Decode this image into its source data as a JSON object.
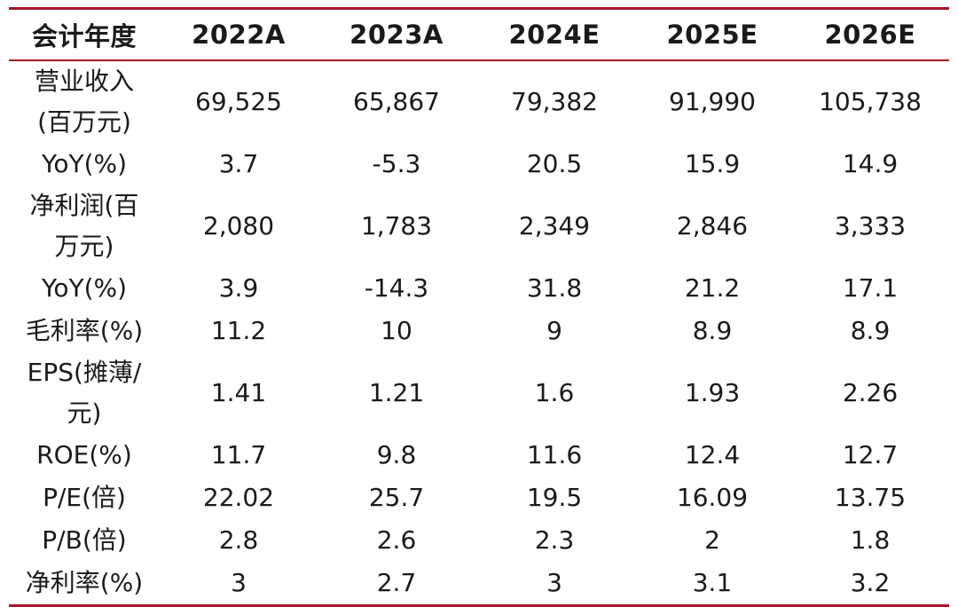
{
  "table": {
    "header": [
      "会计年度",
      "2022A",
      "2023A",
      "2024E",
      "2025E",
      "2026E"
    ],
    "rows": [
      {
        "label": "营业收入(百万元)",
        "lines": 2,
        "values": [
          "69,525",
          "65,867",
          "79,382",
          "91,990",
          "105,738"
        ]
      },
      {
        "label": "YoY(%)",
        "lines": 1,
        "values": [
          "3.7",
          "-5.3",
          "20.5",
          "15.9",
          "14.9"
        ]
      },
      {
        "label": "净利润(百万元)",
        "lines": 2,
        "values": [
          "2,080",
          "1,783",
          "2,349",
          "2,846",
          "3,333"
        ]
      },
      {
        "label": "YoY(%)",
        "lines": 1,
        "values": [
          "3.9",
          "-14.3",
          "31.8",
          "21.2",
          "17.1"
        ]
      },
      {
        "label": "毛利率(%)",
        "lines": 1,
        "values": [
          "11.2",
          "10",
          "9",
          "8.9",
          "8.9"
        ]
      },
      {
        "label": "EPS(摊薄/元)",
        "lines": 2,
        "values": [
          "1.41",
          "1.21",
          "1.6",
          "1.93",
          "2.26"
        ]
      },
      {
        "label": "ROE(%)",
        "lines": 1,
        "values": [
          "11.7",
          "9.8",
          "11.6",
          "12.4",
          "12.7"
        ]
      },
      {
        "label": "P/E(倍)",
        "lines": 1,
        "values": [
          "22.02",
          "25.7",
          "19.5",
          "16.09",
          "13.75"
        ]
      },
      {
        "label": "P/B(倍)",
        "lines": 1,
        "values": [
          "2.8",
          "2.6",
          "2.3",
          "2",
          "1.8"
        ]
      },
      {
        "label": "净利率(%)",
        "lines": 1,
        "values": [
          "3",
          "2.7",
          "3",
          "3.1",
          "3.2"
        ]
      }
    ]
  },
  "colors": {
    "rule": "#a8172b",
    "text": "#1a1a1a",
    "background": "#ffffff"
  }
}
